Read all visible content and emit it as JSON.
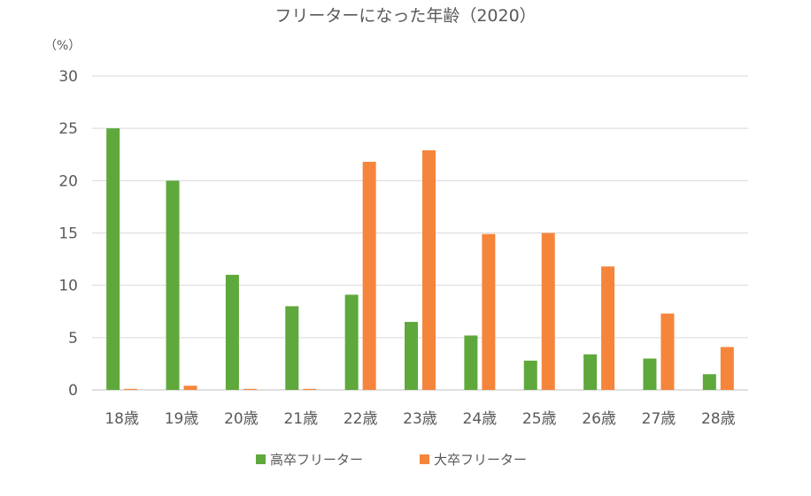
{
  "chart_data": {
    "type": "bar",
    "title": "フリーターになった年齢（2020）",
    "unit_label": "（%）",
    "categories": [
      "18歳",
      "19歳",
      "20歳",
      "21歳",
      "22歳",
      "23歳",
      "24歳",
      "25歳",
      "26歳",
      "27歳",
      "28歳"
    ],
    "series": [
      {
        "name": "高卒フリーター",
        "color": "#5FA83C",
        "values": [
          25.0,
          20.0,
          11.0,
          8.0,
          9.1,
          6.5,
          5.2,
          2.8,
          3.4,
          3.0,
          1.5
        ]
      },
      {
        "name": "大卒フリーター",
        "color": "#F5853B",
        "values": [
          0.1,
          0.4,
          0.1,
          0.1,
          21.8,
          22.9,
          14.9,
          15.0,
          11.8,
          7.3,
          4.1
        ]
      }
    ],
    "yticks": [
      "0",
      "5",
      "10",
      "15",
      "20",
      "25",
      "30"
    ],
    "ylim": [
      0,
      30
    ],
    "grid": true,
    "legend_position": "bottom"
  }
}
